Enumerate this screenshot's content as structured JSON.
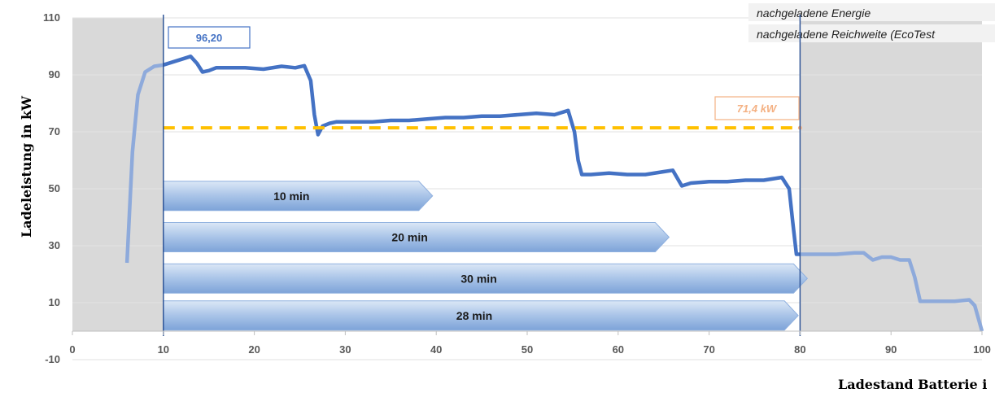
{
  "chart_data": {
    "type": "line",
    "xlabel": "Ladestand Batterie i",
    "ylabel": "Ladeleistung in kW",
    "xlim": [
      0,
      100
    ],
    "ylim": [
      -10,
      110
    ],
    "x_ticks": [
      0,
      10,
      20,
      30,
      40,
      50,
      60,
      70,
      80,
      90,
      100
    ],
    "y_ticks": [
      -10,
      10,
      30,
      50,
      70,
      90,
      110
    ],
    "x_tick_labels": [
      "0",
      "10",
      "20",
      "30",
      "40",
      "50",
      "60",
      "70",
      "80",
      "90",
      "100"
    ],
    "y_tick_labels": [
      "-10",
      "10",
      "30",
      "50",
      "70",
      "90",
      "110"
    ],
    "shaded_regions": [
      [
        0,
        10
      ],
      [
        80,
        100
      ]
    ],
    "window_lines": [
      10,
      80
    ],
    "series": [
      {
        "color": "#4472c4",
        "x": [
          6,
          6.6,
          7.2,
          8,
          9,
          10,
          11,
          12,
          13,
          13.7,
          14.3,
          15,
          15.8,
          17,
          19,
          21,
          23,
          24.5,
          25.5,
          26.2,
          26.6,
          27,
          27.5,
          28.3,
          29,
          31,
          33,
          35,
          37,
          39,
          41,
          43,
          45,
          47,
          49,
          51,
          53,
          54.5,
          55.2,
          55.6,
          56,
          57,
          59,
          61,
          63,
          65,
          66,
          67,
          68,
          70,
          72,
          74,
          76,
          78,
          78.8,
          79.2,
          79.6,
          80,
          81,
          82,
          84,
          86,
          87,
          88,
          89,
          90,
          91,
          92,
          92.6,
          93.2,
          95,
          97,
          98.6,
          99.2,
          100
        ],
        "y": [
          24,
          63,
          83,
          91,
          93,
          93.5,
          94.5,
          95.5,
          96.5,
          94,
          91,
          91.5,
          92.5,
          92.5,
          92.5,
          92,
          93,
          92.5,
          93.2,
          88,
          76,
          69,
          72,
          73,
          73.5,
          73.5,
          73.5,
          74,
          74,
          74.5,
          75,
          75,
          75.5,
          75.5,
          76,
          76.5,
          76,
          77.5,
          70,
          60,
          55,
          55,
          55.5,
          55,
          55,
          56,
          56.5,
          51,
          52,
          52.5,
          52.5,
          53,
          53,
          54,
          50,
          38,
          27,
          27,
          27,
          27,
          27,
          27.5,
          27.5,
          25,
          26,
          26,
          25,
          25,
          19,
          10.5,
          10.5,
          10.5,
          11,
          9,
          0
        ]
      },
      {
        "color": "#ffc000",
        "style": "dashed",
        "x": [
          10,
          80
        ],
        "y": [
          71.4,
          71.4
        ]
      }
    ],
    "annotations": {
      "peak": {
        "label": "96,20",
        "x": 13.5,
        "y": 96.2
      },
      "average": {
        "label": "71,4 kW",
        "x": 80,
        "y": 71.4
      }
    },
    "bars": [
      {
        "label": "10 min",
        "start": 10,
        "end": 39.6,
        "y": 47.5
      },
      {
        "label": "20 min",
        "start": 10,
        "end": 65.6,
        "y": 33
      },
      {
        "label": "30 min",
        "start": 10,
        "end": 80.8,
        "y": 18.5
      },
      {
        "label": "28 min",
        "start": 10,
        "end": 79.8,
        "y": 5.5
      }
    ],
    "legend": {
      "placement": "top-right",
      "entries": [
        "nachgeladene Energie",
        "nachgeladene Reichweite (EcoTest"
      ]
    }
  }
}
